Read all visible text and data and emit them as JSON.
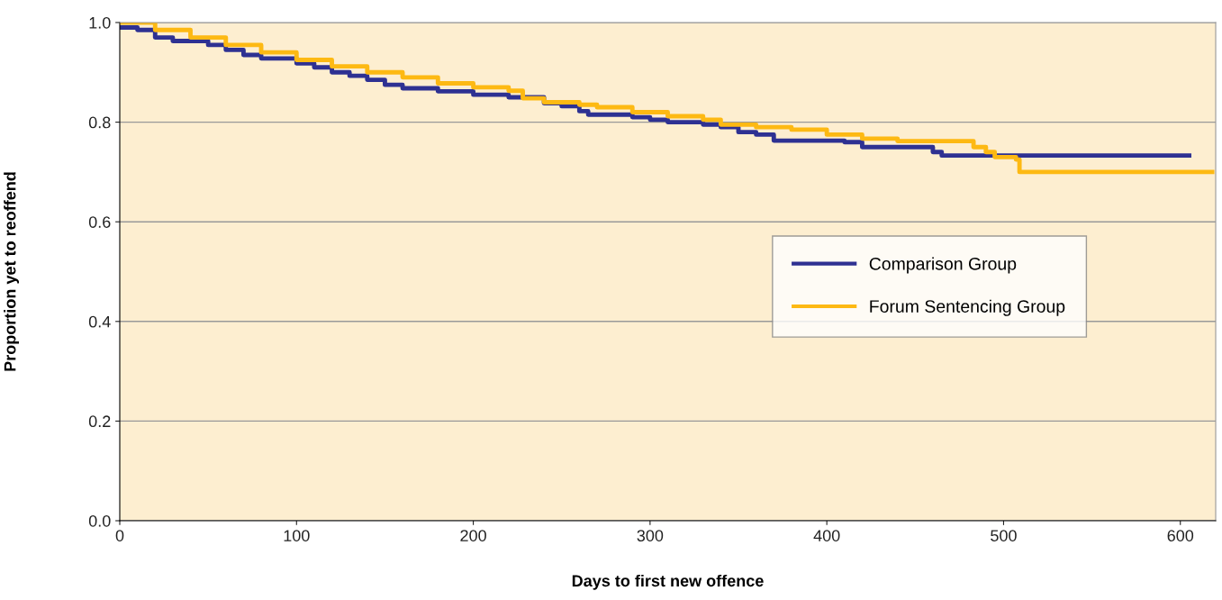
{
  "chart_data": {
    "type": "step",
    "xlabel": "Days to first new offence",
    "ylabel": "Proportion yet to reoffend",
    "xlim": [
      0,
      620
    ],
    "xticks": [
      0,
      100,
      200,
      300,
      400,
      500,
      600
    ],
    "ylim": [
      0,
      1
    ],
    "yticks": [
      {
        "value": 0,
        "label": "0.0"
      },
      0.2,
      0.4,
      0.6,
      0.8,
      {
        "value": 1,
        "label": "1.0"
      }
    ],
    "grid": "y",
    "legend": "right",
    "marker": "none",
    "line_style": "solid",
    "series": [
      {
        "name": "Comparison Group",
        "color": "#2e3192",
        "x": [
          0,
          10,
          20,
          30,
          50,
          60,
          70,
          80,
          100,
          110,
          120,
          130,
          140,
          150,
          160,
          180,
          200,
          220,
          240,
          250,
          260,
          265,
          290,
          300,
          310,
          330,
          340,
          350,
          360,
          370,
          410,
          420,
          460,
          465,
          605
        ],
        "values": [
          0.99,
          0.985,
          0.97,
          0.963,
          0.955,
          0.945,
          0.935,
          0.928,
          0.918,
          0.91,
          0.9,
          0.893,
          0.885,
          0.875,
          0.868,
          0.862,
          0.855,
          0.85,
          0.838,
          0.832,
          0.822,
          0.815,
          0.81,
          0.805,
          0.8,
          0.795,
          0.79,
          0.78,
          0.775,
          0.763,
          0.76,
          0.75,
          0.74,
          0.733,
          0.733
        ]
      },
      {
        "name": "Forum Sentencing Group",
        "color": "#fdb913",
        "x": [
          0,
          20,
          40,
          60,
          80,
          100,
          120,
          140,
          160,
          180,
          200,
          220,
          228,
          240,
          260,
          270,
          290,
          310,
          330,
          340,
          360,
          380,
          400,
          420,
          440,
          480,
          483,
          490,
          495,
          507,
          509,
          618
        ],
        "values": [
          1.0,
          0.985,
          0.97,
          0.955,
          0.94,
          0.925,
          0.912,
          0.9,
          0.89,
          0.878,
          0.87,
          0.863,
          0.848,
          0.84,
          0.835,
          0.83,
          0.82,
          0.812,
          0.805,
          0.795,
          0.79,
          0.785,
          0.775,
          0.767,
          0.762,
          0.762,
          0.75,
          0.74,
          0.73,
          0.725,
          0.7,
          0.7
        ]
      }
    ]
  }
}
